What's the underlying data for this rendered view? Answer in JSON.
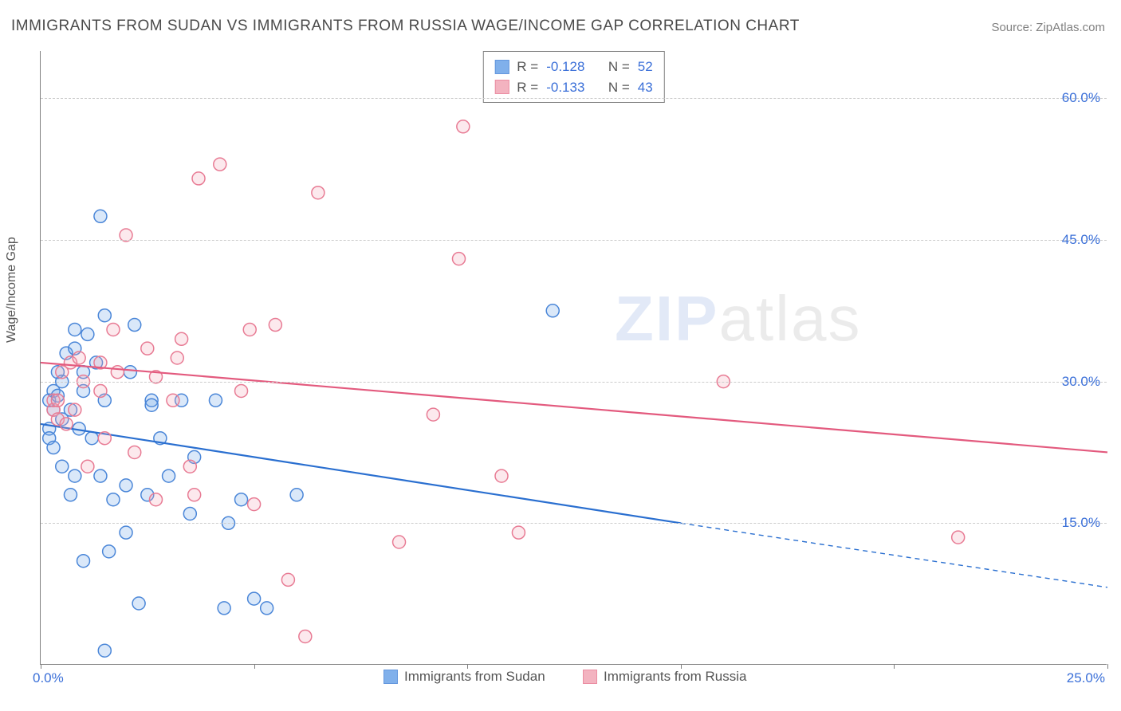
{
  "title": "IMMIGRANTS FROM SUDAN VS IMMIGRANTS FROM RUSSIA WAGE/INCOME GAP CORRELATION CHART",
  "source": "Source: ZipAtlas.com",
  "ylabel": "Wage/Income Gap",
  "watermark_a": "ZIP",
  "watermark_b": "atlas",
  "chart": {
    "type": "scatter-with-regression",
    "background_color": "#ffffff",
    "grid_color": "#cccccc",
    "axis_color": "#808080",
    "tick_label_color": "#3a6fd8",
    "label_fontsize": 16,
    "tick_fontsize": 17,
    "title_fontsize": 19,
    "xlim": [
      0,
      25
    ],
    "ylim": [
      0,
      65
    ],
    "x_ticks": [
      0,
      5,
      10,
      15,
      20,
      25
    ],
    "x_tick_labels": [
      "0.0%",
      "",
      "",
      "",
      "",
      "25.0%"
    ],
    "y_gridlines": [
      15,
      30,
      45,
      60
    ],
    "y_tick_labels": [
      "15.0%",
      "30.0%",
      "45.0%",
      "60.0%"
    ],
    "marker_radius": 8,
    "marker_stroke_width": 1.5,
    "marker_fill_opacity": 0.25,
    "line_width": 2.2,
    "series": [
      {
        "name": "Immigrants from Sudan",
        "color": "#6aa3e8",
        "stroke": "#4a86d8",
        "line_color": "#2a6fd0",
        "R": "-0.128",
        "N": "52",
        "regression": {
          "x1": 0,
          "y1": 25.5,
          "x2": 15,
          "y2": 15.0,
          "extend_to": 25,
          "y_extend": 8.2
        },
        "points": [
          [
            0.2,
            28
          ],
          [
            0.2,
            25
          ],
          [
            0.2,
            24
          ],
          [
            0.3,
            23
          ],
          [
            0.3,
            27
          ],
          [
            0.3,
            29
          ],
          [
            0.4,
            31
          ],
          [
            0.4,
            28.5
          ],
          [
            0.5,
            21
          ],
          [
            0.5,
            30
          ],
          [
            0.5,
            26
          ],
          [
            0.6,
            33
          ],
          [
            0.7,
            18
          ],
          [
            0.7,
            27
          ],
          [
            0.8,
            20
          ],
          [
            0.8,
            33.5
          ],
          [
            0.8,
            35.5
          ],
          [
            0.9,
            25
          ],
          [
            1.0,
            29
          ],
          [
            1.0,
            11
          ],
          [
            1.0,
            31
          ],
          [
            1.1,
            35
          ],
          [
            1.2,
            24
          ],
          [
            1.3,
            32
          ],
          [
            1.4,
            20
          ],
          [
            1.4,
            47.5
          ],
          [
            1.5,
            37
          ],
          [
            1.5,
            28
          ],
          [
            1.5,
            1.5
          ],
          [
            1.6,
            12
          ],
          [
            1.7,
            17.5
          ],
          [
            2.0,
            19
          ],
          [
            2.0,
            14
          ],
          [
            2.1,
            31
          ],
          [
            2.2,
            36
          ],
          [
            2.3,
            6.5
          ],
          [
            2.5,
            18
          ],
          [
            2.6,
            28
          ],
          [
            2.6,
            27.5
          ],
          [
            2.8,
            24
          ],
          [
            3.0,
            20
          ],
          [
            3.3,
            28
          ],
          [
            3.5,
            16
          ],
          [
            3.6,
            22
          ],
          [
            4.1,
            28
          ],
          [
            4.3,
            6
          ],
          [
            4.4,
            15
          ],
          [
            4.7,
            17.5
          ],
          [
            5.0,
            7
          ],
          [
            5.3,
            6
          ],
          [
            6.0,
            18
          ],
          [
            12.0,
            37.5
          ]
        ]
      },
      {
        "name": "Immigrants from Russia",
        "color": "#f2a6b6",
        "stroke": "#e87b94",
        "line_color": "#e35a7e",
        "R": "-0.133",
        "N": "43",
        "regression": {
          "x1": 0,
          "y1": 32.0,
          "x2": 25,
          "y2": 22.5
        },
        "points": [
          [
            0.3,
            27
          ],
          [
            0.3,
            28
          ],
          [
            0.4,
            28
          ],
          [
            0.4,
            26
          ],
          [
            0.5,
            31
          ],
          [
            0.6,
            25.5
          ],
          [
            0.7,
            32
          ],
          [
            0.8,
            27
          ],
          [
            0.9,
            32.5
          ],
          [
            1.0,
            30
          ],
          [
            1.1,
            21
          ],
          [
            1.4,
            29
          ],
          [
            1.4,
            32
          ],
          [
            1.5,
            24
          ],
          [
            1.7,
            35.5
          ],
          [
            1.8,
            31
          ],
          [
            2.0,
            45.5
          ],
          [
            2.2,
            22.5
          ],
          [
            2.5,
            33.5
          ],
          [
            2.7,
            30.5
          ],
          [
            2.7,
            17.5
          ],
          [
            3.1,
            28
          ],
          [
            3.2,
            32.5
          ],
          [
            3.3,
            34.5
          ],
          [
            3.5,
            21
          ],
          [
            3.6,
            18
          ],
          [
            3.7,
            51.5
          ],
          [
            4.2,
            53
          ],
          [
            4.7,
            29
          ],
          [
            4.9,
            35.5
          ],
          [
            5.0,
            17
          ],
          [
            5.5,
            36
          ],
          [
            5.8,
            9
          ],
          [
            6.2,
            3
          ],
          [
            6.5,
            50
          ],
          [
            8.4,
            13
          ],
          [
            9.2,
            26.5
          ],
          [
            9.8,
            43
          ],
          [
            9.9,
            57
          ],
          [
            10.8,
            20
          ],
          [
            11.2,
            14
          ],
          [
            16.0,
            30
          ],
          [
            21.5,
            13.5
          ]
        ]
      }
    ],
    "stats_box": {
      "r_label": "R =",
      "n_label": "N ="
    },
    "bottom_legend": [
      {
        "label": "Immigrants from Sudan",
        "series_index": 0
      },
      {
        "label": "Immigrants from Russia",
        "series_index": 1
      }
    ]
  }
}
